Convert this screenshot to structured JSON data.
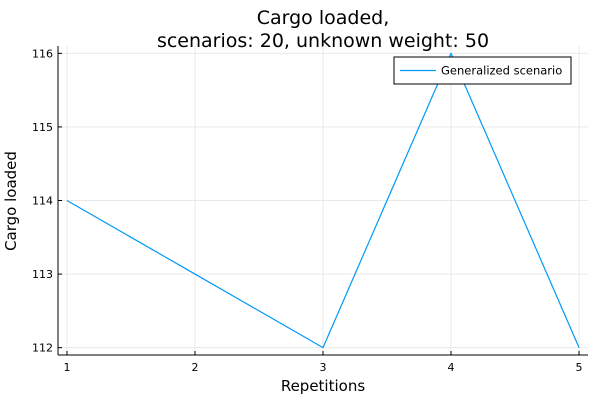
{
  "chart_data": {
    "type": "line",
    "title_line1": "Cargo loaded,",
    "title_line2": "scenarios: 20, unknown weight: 50",
    "xlabel": "Repetitions",
    "ylabel": "Cargo loaded",
    "xlim": [
      0.93,
      5.07
    ],
    "ylim": [
      111.9,
      116.1
    ],
    "xticks": [
      1,
      2,
      3,
      4,
      5
    ],
    "yticks": [
      112,
      113,
      114,
      115,
      116
    ],
    "grid": true,
    "legend_position": "top-right",
    "series": [
      {
        "name": "Generalized scenario",
        "color": "#009af9",
        "x": [
          1,
          2,
          3,
          4,
          5
        ],
        "y": [
          114,
          113,
          112,
          116,
          112
        ]
      }
    ]
  }
}
